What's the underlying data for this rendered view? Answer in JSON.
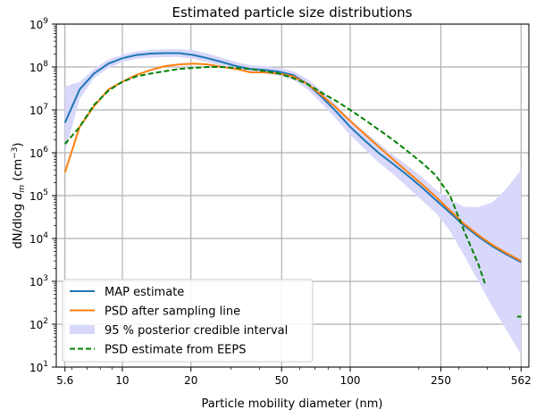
{
  "chart_data": {
    "type": "line",
    "title": "Estimated particle size distributions",
    "xlabel": "Particle mobility diameter (nm)",
    "ylabel": "dN/dlog d_m (cm^-3)",
    "xscale": "log",
    "yscale": "log",
    "xlim": [
      5.13,
      608
    ],
    "ylim": [
      10,
      1000000000
    ],
    "xticks": [
      5.6,
      10,
      20,
      50,
      100,
      250,
      562
    ],
    "xtick_labels": [
      "5.6",
      "10",
      "20",
      "50",
      "100",
      "250",
      "562"
    ],
    "yticks": [
      10,
      100,
      1000,
      10000,
      100000,
      1000000,
      10000000,
      100000000,
      1000000000
    ],
    "ytick_labels": [
      [
        "10",
        "1"
      ],
      [
        "10",
        "2"
      ],
      [
        "10",
        "3"
      ],
      [
        "10",
        "4"
      ],
      [
        "10",
        "5"
      ],
      [
        "10",
        "6"
      ],
      [
        "10",
        "7"
      ],
      [
        "10",
        "8"
      ],
      [
        "10",
        "9"
      ]
    ],
    "grid": true,
    "legend_position": "lower-left",
    "x": [
      5.6,
      6.5,
      7.5,
      8.7,
      10,
      11.5,
      13.3,
      15.4,
      17.8,
      20.5,
      23.7,
      27.4,
      31.6,
      36.5,
      42.2,
      48.7,
      56.2,
      65,
      75,
      87,
      100,
      115,
      133,
      154,
      178,
      205,
      237,
      274,
      316,
      365,
      422,
      487,
      562
    ],
    "series": [
      {
        "name": "MAP estimate",
        "color": "#1f77b4",
        "style": "solid",
        "values": [
          5000000.0,
          30000000.0,
          70000000.0,
          120000000.0,
          160000000.0,
          190000000.0,
          205000000.0,
          210000000.0,
          210000000.0,
          190000000.0,
          160000000.0,
          130000000.0,
          105000000.0,
          90000000.0,
          85000000.0,
          78000000.0,
          65000000.0,
          40000000.0,
          20000000.0,
          9000000.0,
          4000000.0,
          2000000.0,
          1000000.0,
          550000.0,
          300000.0,
          160000.0,
          80000.0,
          40000.0,
          20000.0,
          11000.0,
          6500.0,
          4200.0,
          2800.0
        ]
      },
      {
        "name": "PSD after sampling line",
        "color": "#ff7f0e",
        "style": "solid",
        "values": [
          350000.0,
          4000000.0,
          12000000.0,
          30000000.0,
          45000000.0,
          65000000.0,
          85000000.0,
          105000000.0,
          115000000.0,
          120000000.0,
          115000000.0,
          100000000.0,
          90000000.0,
          75000000.0,
          75000000.0,
          70000000.0,
          60000000.0,
          40000000.0,
          22000000.0,
          11000000.0,
          5500000.0,
          2800000.0,
          1400000.0,
          700000.0,
          360000.0,
          190000.0,
          95000.0,
          45000.0,
          22000.0,
          12000.0,
          7000.0,
          4500.0,
          3000.0
        ]
      },
      {
        "name": "95 % posterior credible interval",
        "color": "#d8d8fb",
        "style": "band",
        "lower": [
          1000000.0,
          18000000.0,
          55000000.0,
          95000000.0,
          130000000.0,
          155000000.0,
          165000000.0,
          170000000.0,
          170000000.0,
          155000000.0,
          130000000.0,
          105000000.0,
          85000000.0,
          75000000.0,
          70000000.0,
          63000000.0,
          50000000.0,
          30000000.0,
          14000000.0,
          6000000.0,
          2600000.0,
          1250000.0,
          600000.0,
          320000.0,
          160000.0,
          80000.0,
          40000.0,
          15000.0,
          4000.0,
          1000.0,
          250.0,
          70,
          20
        ],
        "upper": [
          35000000.0,
          45000000.0,
          90000000.0,
          150000000.0,
          195000000.0,
          230000000.0,
          250000000.0,
          260000000.0,
          260000000.0,
          245000000.0,
          205000000.0,
          165000000.0,
          130000000.0,
          110000000.0,
          105000000.0,
          95000000.0,
          80000000.0,
          52000000.0,
          28000000.0,
          13000000.0,
          6000000.0,
          3200000.0,
          1700000.0,
          900000.0,
          500000.0,
          280000.0,
          140000.0,
          80000.0,
          55000.0,
          54000.0,
          70000.0,
          150000.0,
          400000.0
        ]
      },
      {
        "name": "PSD estimate from EEPS",
        "color": "#008000",
        "style": "dashed",
        "segments": [
          {
            "x": [
              5.6,
              6.5,
              7.5,
              8.7,
              10,
              11.5,
              13.3,
              15.4,
              17.8,
              20.5,
              23.7,
              27.4,
              31.6,
              36.5,
              42.2,
              48.7,
              56.2,
              65,
              75,
              87,
              100,
              115,
              133,
              154,
              178,
              205,
              237,
              274,
              316,
              365,
              390
            ],
            "values": [
              1600000.0,
              4000000.0,
              13000000.0,
              28000000.0,
              45000000.0,
              60000000.0,
              70000000.0,
              80000000.0,
              90000000.0,
              95000000.0,
              100000000.0,
              100000000.0,
              95000000.0,
              90000000.0,
              80000000.0,
              70000000.0,
              55000000.0,
              40000000.0,
              25000000.0,
              16000000.0,
              10000000.0,
              6000000.0,
              3500000.0,
              2000000.0,
              1100000.0,
              600000.0,
              300000.0,
              100000.0,
              15000.0,
              2500.0,
              900
            ]
          },
          {
            "x": [
              540,
              562
            ],
            "values": [
              150,
              150
            ]
          }
        ]
      }
    ]
  }
}
